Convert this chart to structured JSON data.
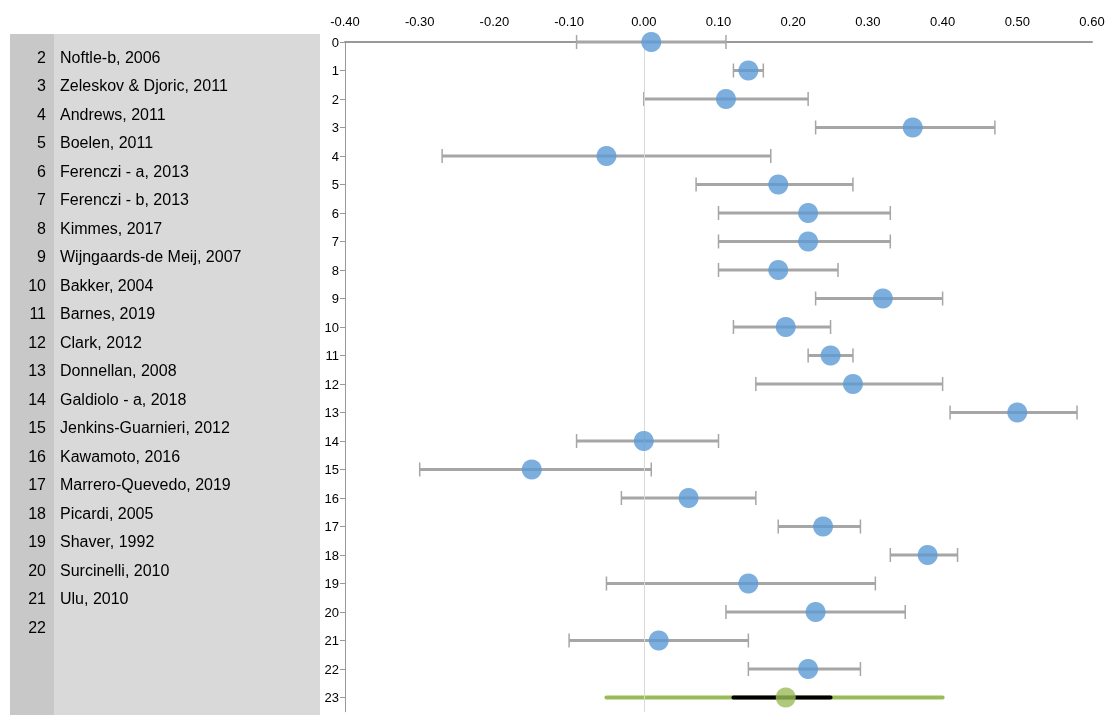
{
  "chart_data": {
    "type": "scatter",
    "xlim": [
      -0.4,
      0.6
    ],
    "xticks": [
      {
        "value": -0.4,
        "label": "-0.40"
      },
      {
        "value": -0.3,
        "label": "-0.30"
      },
      {
        "value": -0.2,
        "label": "-0.20"
      },
      {
        "value": -0.1,
        "label": "-0.10"
      },
      {
        "value": 0,
        "label": "0.00"
      },
      {
        "value": 0.1,
        "label": "0.10"
      },
      {
        "value": 0.2,
        "label": "0.20"
      },
      {
        "value": 0.3,
        "label": "0.30"
      },
      {
        "value": 0.4,
        "label": "0.40"
      },
      {
        "value": 0.5,
        "label": "0.50"
      },
      {
        "value": 0.6,
        "label": "0.60"
      }
    ],
    "ylim": [
      23.5,
      0
    ],
    "yticks": [
      0,
      1,
      2,
      3,
      4,
      5,
      6,
      7,
      8,
      9,
      10,
      11,
      12,
      13,
      14,
      15,
      16,
      17,
      18,
      19,
      20,
      21,
      22,
      23
    ],
    "marker": "circle",
    "grid": false,
    "ref_lines": [
      {
        "axis": "x",
        "value": 0,
        "color": "#d9d9d9"
      }
    ],
    "series": [
      {
        "type": "line",
        "marker": "none",
        "color": "#9bbb59",
        "x": [
          -0.05,
          0.4
        ],
        "values": [
          23,
          23
        ]
      },
      {
        "type": "line",
        "marker": "none",
        "color": "#000000",
        "x": [
          0.12,
          0.25
        ],
        "values": [
          23,
          23
        ]
      },
      {
        "color": "#5b9bd5",
        "x": [
          0.01,
          0.14,
          0.11,
          0.36,
          -0.05,
          0.18,
          0.22,
          0.22,
          0.18,
          0.32,
          0.19,
          0.25,
          0.28,
          0.5,
          0.0,
          -0.15,
          0.06,
          0.24,
          0.38,
          0.14,
          0.23,
          0.02,
          0.22
        ],
        "values": [
          0,
          1,
          2,
          3,
          4,
          5,
          6,
          7,
          8,
          9,
          10,
          11,
          12,
          13,
          14,
          15,
          16,
          17,
          18,
          19,
          20,
          21,
          22
        ],
        "xerrors": [
          [
            -0.09,
            0.11
          ],
          [
            0.12,
            0.16
          ],
          [
            0.0,
            0.22
          ],
          [
            0.23,
            0.47
          ],
          [
            -0.27,
            0.17
          ],
          [
            0.07,
            0.28
          ],
          [
            0.1,
            0.33
          ],
          [
            0.1,
            0.33
          ],
          [
            0.1,
            0.26
          ],
          [
            0.23,
            0.4
          ],
          [
            0.12,
            0.25
          ],
          [
            0.22,
            0.28
          ],
          [
            0.15,
            0.4
          ],
          [
            0.41,
            0.58
          ],
          [
            -0.09,
            0.1
          ],
          [
            -0.3,
            0.01
          ],
          [
            -0.03,
            0.15
          ],
          [
            0.18,
            0.29
          ],
          [
            0.33,
            0.42
          ],
          [
            -0.05,
            0.31
          ],
          [
            0.11,
            0.35
          ],
          [
            -0.1,
            0.14
          ],
          [
            0.14,
            0.29
          ]
        ]
      },
      {
        "color": "#9bbb59",
        "x": [
          0.19
        ],
        "values": [
          23
        ]
      }
    ],
    "annotations": [
      "2",
      "Noftle-b, 2006",
      "3",
      "Zeleskov & Djoric, 2011",
      "4",
      "Andrews, 2011",
      "5",
      "Boelen, 2011",
      "6",
      "Ferenczi - a, 2013",
      "7",
      "Ferenczi - b, 2013",
      "8",
      "Kimmes, 2017",
      "9",
      "Wijngaards-de Meij, 2007",
      "10",
      "Bakker, 2004",
      "11",
      "Barnes, 2019",
      "12",
      "Clark, 2012",
      "13",
      "Donnellan, 2008",
      "14",
      "Galdiolo - a, 2018",
      "15",
      "Jenkins-Guarnieri, 2012",
      "16",
      "Kawamoto, 2016",
      "17",
      "Marrero-Quevedo, 2019",
      "18",
      "Picardi, 2005",
      "19",
      "Shaver, 1992",
      "20",
      "Surcinelli, 2010",
      "21",
      "Ulu, 2010",
      "22"
    ]
  }
}
